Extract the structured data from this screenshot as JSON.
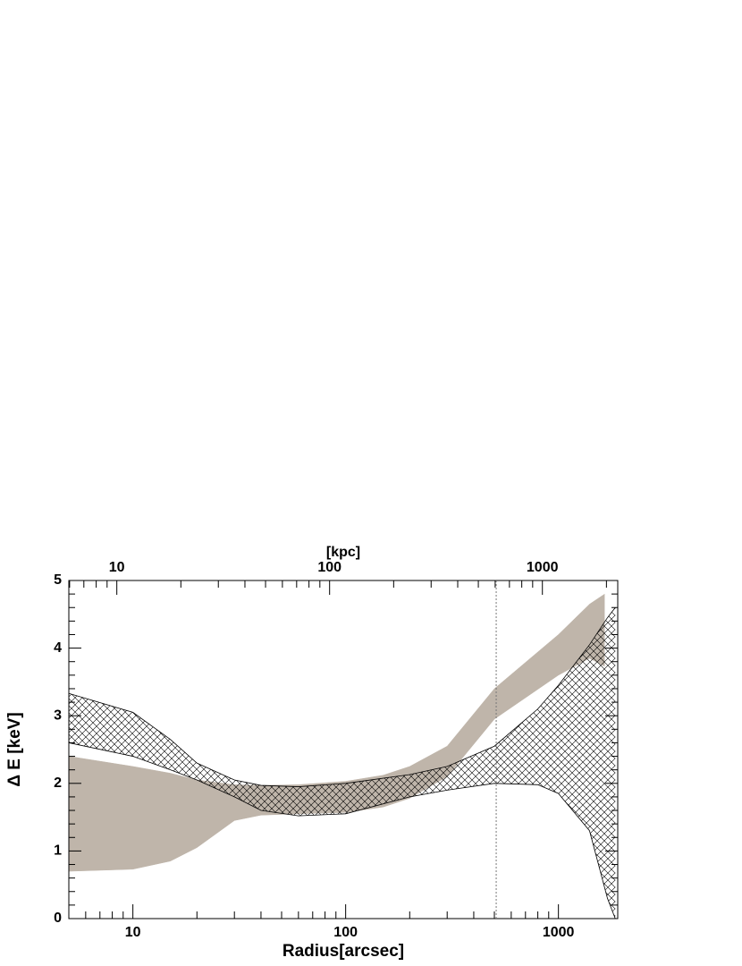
{
  "chart_data": {
    "type": "band",
    "xlabel": "Radius[arcsec]",
    "x2label": "[kpc]",
    "ylabel": "Δ E [keV]",
    "xscale": "log",
    "xlim": [
      5,
      1900
    ],
    "xticks": [
      10,
      100,
      1000
    ],
    "x2lim": [
      5.95,
      2260
    ],
    "x2ticks": [
      10,
      100,
      1000
    ],
    "ylim": [
      0,
      5
    ],
    "yticks": [
      0,
      1,
      2,
      3,
      4,
      5
    ],
    "vlines": [
      510
    ],
    "series": [
      {
        "color": "#bfb5aa",
        "fill": "solid",
        "x": [
          5,
          10,
          15,
          20,
          30,
          40,
          60,
          100,
          150,
          200,
          300,
          500,
          1000,
          1400,
          1650
        ],
        "lower": [
          0.7,
          0.73,
          0.85,
          1.05,
          1.45,
          1.53,
          1.55,
          1.57,
          1.65,
          1.78,
          2.1,
          2.95,
          3.6,
          3.85,
          3.73
        ],
        "upper": [
          2.4,
          2.25,
          2.15,
          2.05,
          1.98,
          1.97,
          1.98,
          2.03,
          2.12,
          2.25,
          2.55,
          3.4,
          4.2,
          4.65,
          4.8
        ]
      },
      {
        "color": "#000000",
        "fill": "hatch",
        "x": [
          5,
          10,
          15,
          20,
          30,
          40,
          60,
          100,
          200,
          300,
          500,
          800,
          1000,
          1400,
          1700,
          1850
        ],
        "lower": [
          2.6,
          2.4,
          2.2,
          2.05,
          1.8,
          1.6,
          1.52,
          1.55,
          1.8,
          1.9,
          2.0,
          1.98,
          1.85,
          1.3,
          0.3,
          0
        ],
        "upper": [
          3.33,
          3.05,
          2.65,
          2.3,
          2.05,
          1.97,
          1.95,
          2.0,
          2.13,
          2.25,
          2.55,
          3.1,
          3.45,
          4.05,
          4.45,
          4.6
        ]
      }
    ]
  }
}
